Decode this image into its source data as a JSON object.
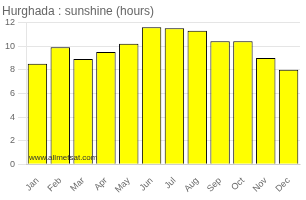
{
  "chart_data": {
    "type": "bar",
    "title": "Hurghada : sunshine (hours)",
    "categories": [
      "Jan",
      "Feb",
      "Mar",
      "Apr",
      "May",
      "Jun",
      "Jul",
      "Aug",
      "Sep",
      "Oct",
      "Nov",
      "Dec"
    ],
    "values": [
      8.5,
      9.9,
      8.9,
      9.5,
      10.2,
      11.6,
      11.5,
      11.3,
      10.4,
      10.4,
      9.0,
      8.0
    ],
    "color": "#FFFF00",
    "ylim": [
      0,
      12
    ],
    "yticks": [
      0,
      2,
      4,
      6,
      8,
      10,
      12
    ],
    "grid": true,
    "annotation": "www.allmetsat.com"
  }
}
